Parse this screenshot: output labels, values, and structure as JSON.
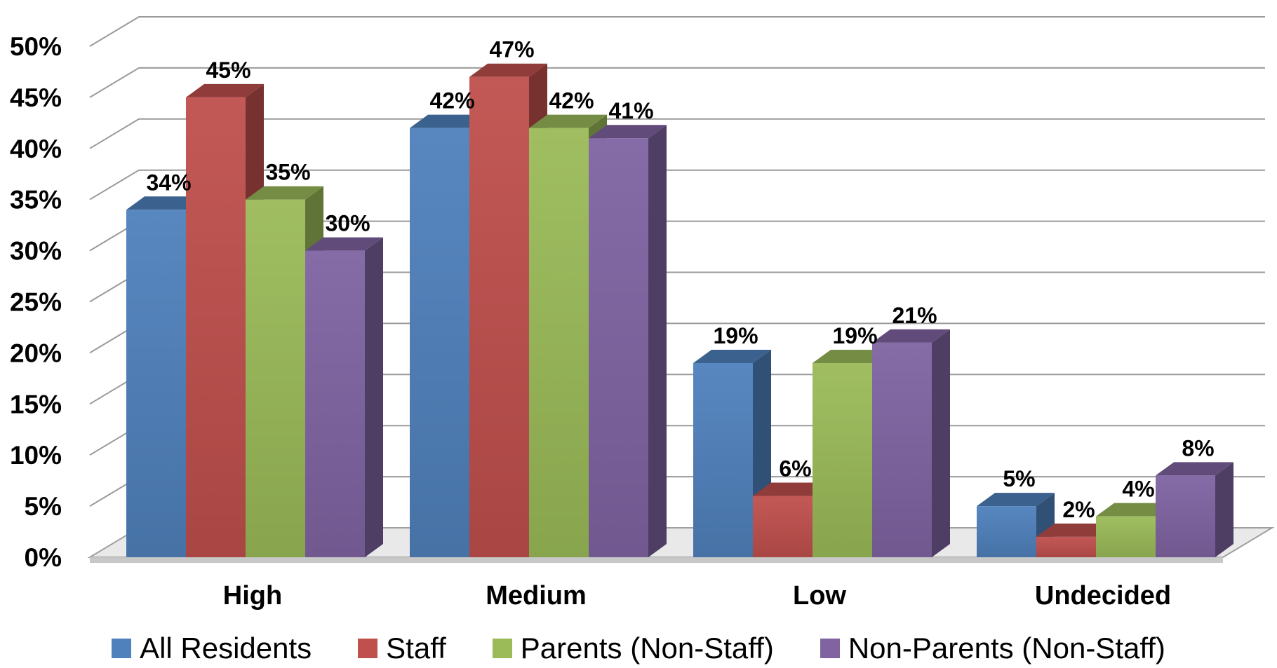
{
  "chart_data": {
    "type": "bar",
    "categories": [
      "High",
      "Medium",
      "Low",
      "Undecided"
    ],
    "series": [
      {
        "name": "All Residents",
        "values": [
          34,
          42,
          19,
          5
        ],
        "color": "#4F81BD"
      },
      {
        "name": "Staff",
        "values": [
          45,
          47,
          6,
          2
        ],
        "color": "#C0504D"
      },
      {
        "name": "Parents (Non-Staff)",
        "values": [
          35,
          42,
          19,
          4
        ],
        "color": "#9BBB59"
      },
      {
        "name": "Non-Parents (Non-Staff)",
        "values": [
          30,
          41,
          21,
          8
        ],
        "color": "#8064A2"
      }
    ],
    "data_labels": [
      [
        "34%",
        "42%",
        "19%",
        "5%"
      ],
      [
        "45%",
        "47%",
        "6%",
        "2%"
      ],
      [
        "35%",
        "42%",
        "19%",
        "4%"
      ],
      [
        "30%",
        "41%",
        "21%",
        "8%"
      ]
    ],
    "y_ticks": [
      0,
      5,
      10,
      15,
      20,
      25,
      30,
      35,
      40,
      45,
      50
    ],
    "y_tick_labels": [
      "0%",
      "5%",
      "10%",
      "15%",
      "20%",
      "25%",
      "30%",
      "35%",
      "40%",
      "45%",
      "50%"
    ],
    "ylim": [
      0,
      50
    ],
    "title": "",
    "xlabel": "",
    "ylabel": "",
    "grid": true,
    "legend_position": "bottom",
    "style": "3d-clustered-column"
  }
}
